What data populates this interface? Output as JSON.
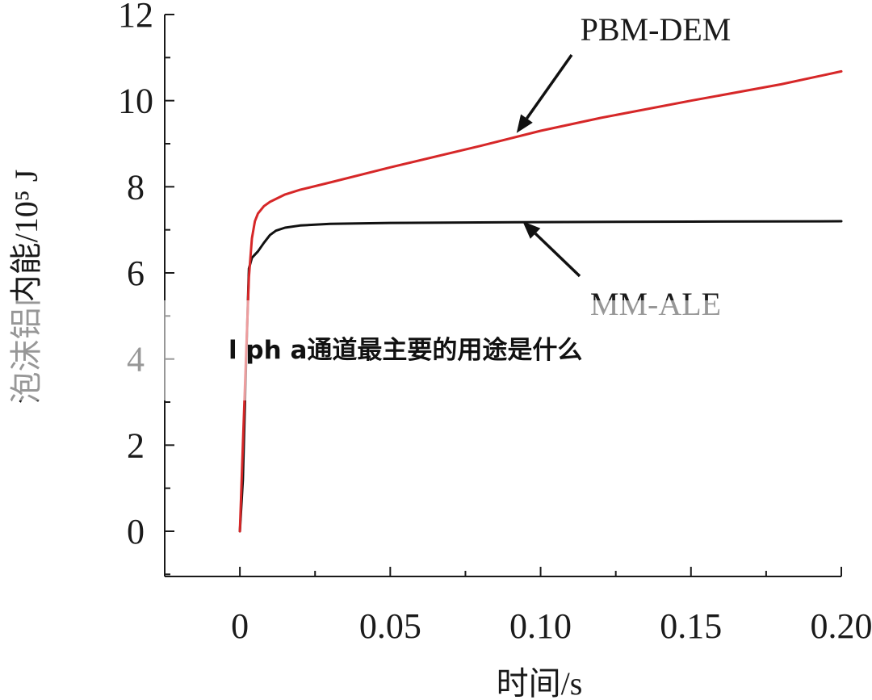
{
  "chart_data": {
    "type": "line",
    "xlabel": "时间/s",
    "ylabel": "泡沫铝内能/10⁵ J",
    "xlim": [
      -0.025,
      0.2
    ],
    "ylim": [
      -1.05,
      12
    ],
    "x_ticks": [
      "0",
      "0.05",
      "0.10",
      "0.15",
      "0.20"
    ],
    "y_ticks": [
      "0",
      "2",
      "4",
      "6",
      "8",
      "10",
      "12"
    ],
    "grid": false,
    "series": [
      {
        "name": "PBM-DEM",
        "color": "#d62728",
        "points": [
          [
            0,
            0
          ],
          [
            0.001,
            2.0
          ],
          [
            0.002,
            4.0
          ],
          [
            0.003,
            5.9
          ],
          [
            0.004,
            6.8
          ],
          [
            0.005,
            7.2
          ],
          [
            0.006,
            7.38
          ],
          [
            0.008,
            7.55
          ],
          [
            0.01,
            7.65
          ],
          [
            0.015,
            7.82
          ],
          [
            0.02,
            7.93
          ],
          [
            0.03,
            8.1
          ],
          [
            0.05,
            8.45
          ],
          [
            0.08,
            8.95
          ],
          [
            0.1,
            9.3
          ],
          [
            0.12,
            9.6
          ],
          [
            0.15,
            10.0
          ],
          [
            0.18,
            10.38
          ],
          [
            0.2,
            10.68
          ]
        ]
      },
      {
        "name": "MM-ALE",
        "color": "#111111",
        "points": [
          [
            0,
            0
          ],
          [
            0.001,
            1.2
          ],
          [
            0.002,
            3.8
          ],
          [
            0.003,
            6.1
          ],
          [
            0.004,
            6.35
          ],
          [
            0.006,
            6.5
          ],
          [
            0.008,
            6.7
          ],
          [
            0.01,
            6.88
          ],
          [
            0.012,
            6.98
          ],
          [
            0.015,
            7.05
          ],
          [
            0.02,
            7.1
          ],
          [
            0.03,
            7.14
          ],
          [
            0.05,
            7.16
          ],
          [
            0.1,
            7.18
          ],
          [
            0.15,
            7.19
          ],
          [
            0.2,
            7.2
          ]
        ]
      }
    ],
    "annotations": [
      {
        "text": "PBM-DEM",
        "x": 0.092,
        "y": 9.25
      },
      {
        "text": "MM-ALE",
        "x": 0.094,
        "y": 7.2
      }
    ]
  },
  "overlay": {
    "caption": "l ph a通道最主要的用途是什么"
  }
}
